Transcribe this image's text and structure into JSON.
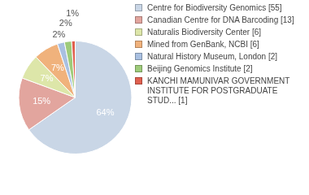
{
  "chart_data": {
    "type": "pie",
    "categories": [
      "Centre for Biodiversity Genomics [55]",
      "Canadian Centre for DNA Barcoding [13]",
      "Naturalis Biodiversity Center [6]",
      "Mined from GenBank, NCBI [6]",
      "Natural History Museum, London [2]",
      "Beijing Genomics Institute [2]",
      "KANCHI MAMUNIVAR GOVERNMENT INSTITUTE FOR POSTGRADUATE STUD... [1]"
    ],
    "values": [
      64,
      15,
      7,
      7,
      2,
      2,
      1
    ],
    "value_labels": [
      "64%",
      "15%",
      "7%",
      "7%",
      "2%",
      "2%",
      "1%"
    ],
    "colors": [
      "#c9d6e6",
      "#e2a59e",
      "#dde6a9",
      "#f0b27c",
      "#a9c0e1",
      "#9ecb7a",
      "#e0604f"
    ],
    "data_labels": true,
    "legend": "right"
  }
}
